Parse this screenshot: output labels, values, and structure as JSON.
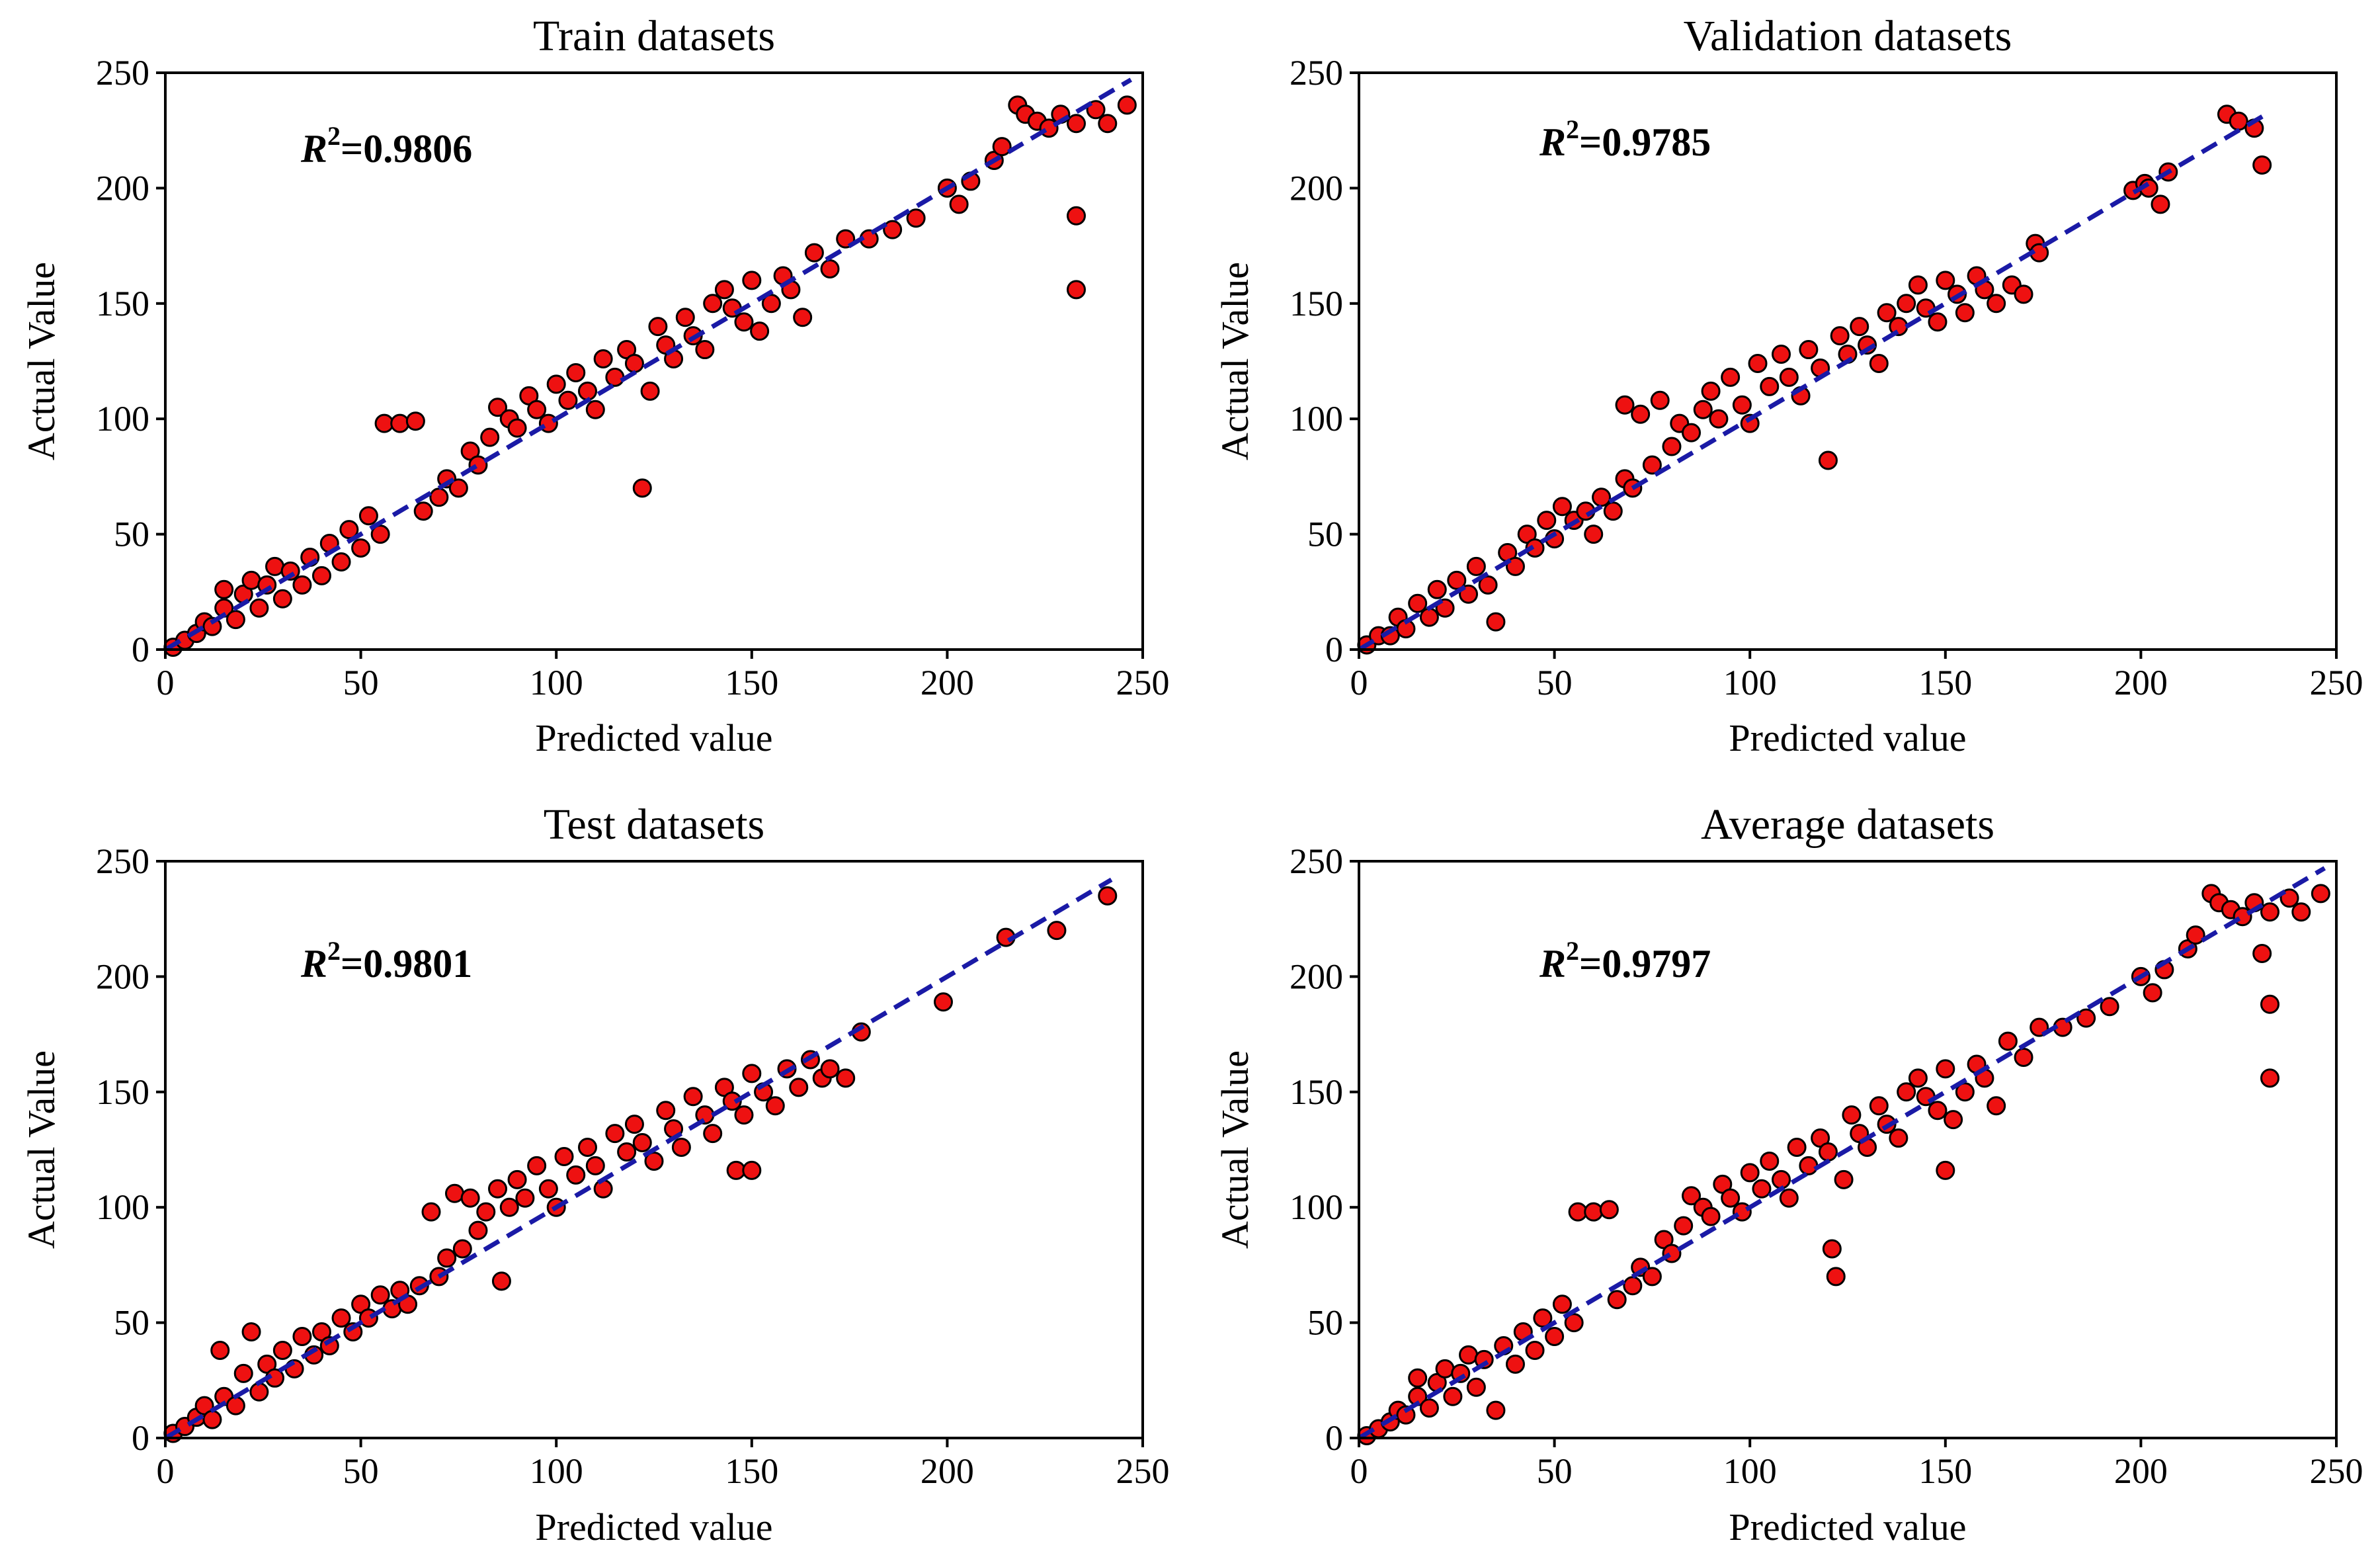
{
  "figure": {
    "marker_color": "#ee1111",
    "marker_edge_color": "#000000",
    "fit_line_color": "#1a1aa6"
  },
  "chart_data": [
    {
      "type": "scatter",
      "title": "Train datasets",
      "xlabel": "Predicted value",
      "ylabel": "Actual Value",
      "xlim": [
        0,
        250
      ],
      "ylim": [
        0,
        250
      ],
      "xticks": [
        0,
        50,
        100,
        150,
        200,
        250
      ],
      "yticks": [
        0,
        50,
        100,
        150,
        200,
        250
      ],
      "annotation": {
        "base": "R",
        "sup": "2",
        "value": "=0.9806"
      },
      "fit_line": {
        "x": [
          0,
          247
        ],
        "y": [
          0,
          247
        ],
        "style": "dashed"
      },
      "points": [
        [
          2,
          1
        ],
        [
          5,
          4
        ],
        [
          8,
          7
        ],
        [
          10,
          12
        ],
        [
          12,
          10
        ],
        [
          15,
          18
        ],
        [
          15,
          26
        ],
        [
          18,
          13
        ],
        [
          20,
          24
        ],
        [
          22,
          30
        ],
        [
          24,
          18
        ],
        [
          26,
          28
        ],
        [
          28,
          36
        ],
        [
          30,
          22
        ],
        [
          32,
          34
        ],
        [
          35,
          28
        ],
        [
          37,
          40
        ],
        [
          40,
          32
        ],
        [
          42,
          46
        ],
        [
          45,
          38
        ],
        [
          47,
          52
        ],
        [
          50,
          44
        ],
        [
          52,
          58
        ],
        [
          55,
          50
        ],
        [
          56,
          98
        ],
        [
          60,
          98
        ],
        [
          64,
          99
        ],
        [
          66,
          60
        ],
        [
          70,
          66
        ],
        [
          72,
          74
        ],
        [
          75,
          70
        ],
        [
          78,
          86
        ],
        [
          80,
          80
        ],
        [
          83,
          92
        ],
        [
          85,
          105
        ],
        [
          88,
          100
        ],
        [
          90,
          96
        ],
        [
          93,
          110
        ],
        [
          95,
          104
        ],
        [
          98,
          98
        ],
        [
          100,
          115
        ],
        [
          103,
          108
        ],
        [
          105,
          120
        ],
        [
          108,
          112
        ],
        [
          110,
          104
        ],
        [
          112,
          126
        ],
        [
          115,
          118
        ],
        [
          118,
          130
        ],
        [
          120,
          124
        ],
        [
          122,
          70
        ],
        [
          124,
          112
        ],
        [
          126,
          140
        ],
        [
          128,
          132
        ],
        [
          130,
          126
        ],
        [
          133,
          144
        ],
        [
          135,
          136
        ],
        [
          138,
          130
        ],
        [
          140,
          150
        ],
        [
          143,
          156
        ],
        [
          145,
          148
        ],
        [
          148,
          142
        ],
        [
          150,
          160
        ],
        [
          152,
          138
        ],
        [
          155,
          150
        ],
        [
          158,
          162
        ],
        [
          160,
          156
        ],
        [
          163,
          144
        ],
        [
          166,
          172
        ],
        [
          170,
          165
        ],
        [
          174,
          178
        ],
        [
          180,
          178
        ],
        [
          186,
          182
        ],
        [
          192,
          187
        ],
        [
          200,
          200
        ],
        [
          203,
          193
        ],
        [
          206,
          203
        ],
        [
          212,
          212
        ],
        [
          214,
          218
        ],
        [
          218,
          236
        ],
        [
          220,
          232
        ],
        [
          223,
          229
        ],
        [
          226,
          226
        ],
        [
          229,
          232
        ],
        [
          233,
          228
        ],
        [
          233,
          188
        ],
        [
          233,
          156
        ],
        [
          238,
          234
        ],
        [
          241,
          228
        ],
        [
          246,
          236
        ]
      ]
    },
    {
      "type": "scatter",
      "title": "Validation datasets",
      "xlabel": "Predicted value",
      "ylabel": "Actual Value",
      "xlim": [
        0,
        250
      ],
      "ylim": [
        0,
        250
      ],
      "xticks": [
        0,
        50,
        100,
        150,
        200,
        250
      ],
      "yticks": [
        0,
        50,
        100,
        150,
        200,
        250
      ],
      "annotation": {
        "base": "R",
        "sup": "2",
        "value": "=0.9785"
      },
      "fit_line": {
        "x": [
          0,
          232
        ],
        "y": [
          0,
          232
        ],
        "style": "dashed"
      },
      "points": [
        [
          2,
          2
        ],
        [
          5,
          6
        ],
        [
          8,
          6
        ],
        [
          10,
          14
        ],
        [
          12,
          9
        ],
        [
          15,
          20
        ],
        [
          18,
          14
        ],
        [
          20,
          26
        ],
        [
          22,
          18
        ],
        [
          25,
          30
        ],
        [
          28,
          24
        ],
        [
          30,
          36
        ],
        [
          33,
          28
        ],
        [
          35,
          12
        ],
        [
          38,
          42
        ],
        [
          40,
          36
        ],
        [
          43,
          50
        ],
        [
          45,
          44
        ],
        [
          48,
          56
        ],
        [
          50,
          48
        ],
        [
          52,
          62
        ],
        [
          55,
          56
        ],
        [
          58,
          60
        ],
        [
          60,
          50
        ],
        [
          62,
          66
        ],
        [
          65,
          60
        ],
        [
          68,
          74
        ],
        [
          68,
          106
        ],
        [
          70,
          70
        ],
        [
          72,
          102
        ],
        [
          75,
          80
        ],
        [
          77,
          108
        ],
        [
          80,
          88
        ],
        [
          82,
          98
        ],
        [
          85,
          94
        ],
        [
          88,
          104
        ],
        [
          90,
          112
        ],
        [
          92,
          100
        ],
        [
          95,
          118
        ],
        [
          98,
          106
        ],
        [
          100,
          98
        ],
        [
          102,
          124
        ],
        [
          105,
          114
        ],
        [
          108,
          128
        ],
        [
          110,
          118
        ],
        [
          113,
          110
        ],
        [
          115,
          130
        ],
        [
          118,
          122
        ],
        [
          120,
          82
        ],
        [
          123,
          136
        ],
        [
          125,
          128
        ],
        [
          128,
          140
        ],
        [
          130,
          132
        ],
        [
          133,
          124
        ],
        [
          135,
          146
        ],
        [
          138,
          140
        ],
        [
          140,
          150
        ],
        [
          143,
          158
        ],
        [
          145,
          148
        ],
        [
          148,
          142
        ],
        [
          150,
          160
        ],
        [
          153,
          154
        ],
        [
          155,
          146
        ],
        [
          158,
          162
        ],
        [
          160,
          156
        ],
        [
          163,
          150
        ],
        [
          167,
          158
        ],
        [
          170,
          154
        ],
        [
          173,
          176
        ],
        [
          174,
          172
        ],
        [
          198,
          199
        ],
        [
          201,
          202
        ],
        [
          202,
          200
        ],
        [
          205,
          193
        ],
        [
          207,
          207
        ],
        [
          222,
          232
        ],
        [
          225,
          229
        ],
        [
          229,
          226
        ],
        [
          231,
          210
        ]
      ]
    },
    {
      "type": "scatter",
      "title": "Test datasets",
      "xlabel": "Predicted value",
      "ylabel": "Actual Value",
      "xlim": [
        0,
        250
      ],
      "ylim": [
        0,
        250
      ],
      "xticks": [
        0,
        50,
        100,
        150,
        200,
        250
      ],
      "yticks": [
        0,
        50,
        100,
        150,
        200,
        250
      ],
      "annotation": {
        "base": "R",
        "sup": "2",
        "value": "=0.9801"
      },
      "fit_line": {
        "x": [
          0,
          242
        ],
        "y": [
          0,
          242
        ],
        "style": "dashed"
      },
      "points": [
        [
          2,
          2
        ],
        [
          5,
          5
        ],
        [
          8,
          9
        ],
        [
          10,
          14
        ],
        [
          12,
          8
        ],
        [
          14,
          38
        ],
        [
          15,
          18
        ],
        [
          18,
          14
        ],
        [
          20,
          28
        ],
        [
          22,
          46
        ],
        [
          24,
          20
        ],
        [
          26,
          32
        ],
        [
          28,
          26
        ],
        [
          30,
          38
        ],
        [
          33,
          30
        ],
        [
          35,
          44
        ],
        [
          38,
          36
        ],
        [
          40,
          46
        ],
        [
          42,
          40
        ],
        [
          45,
          52
        ],
        [
          48,
          46
        ],
        [
          50,
          58
        ],
        [
          52,
          52
        ],
        [
          55,
          62
        ],
        [
          58,
          56
        ],
        [
          60,
          64
        ],
        [
          62,
          58
        ],
        [
          65,
          66
        ],
        [
          68,
          98
        ],
        [
          70,
          70
        ],
        [
          72,
          78
        ],
        [
          74,
          106
        ],
        [
          76,
          82
        ],
        [
          78,
          104
        ],
        [
          80,
          90
        ],
        [
          82,
          98
        ],
        [
          85,
          108
        ],
        [
          86,
          68
        ],
        [
          88,
          100
        ],
        [
          90,
          112
        ],
        [
          92,
          104
        ],
        [
          95,
          118
        ],
        [
          98,
          108
        ],
        [
          100,
          100
        ],
        [
          102,
          122
        ],
        [
          105,
          114
        ],
        [
          108,
          126
        ],
        [
          110,
          118
        ],
        [
          112,
          108
        ],
        [
          115,
          132
        ],
        [
          118,
          124
        ],
        [
          120,
          136
        ],
        [
          122,
          128
        ],
        [
          125,
          120
        ],
        [
          128,
          142
        ],
        [
          130,
          134
        ],
        [
          132,
          126
        ],
        [
          135,
          148
        ],
        [
          138,
          140
        ],
        [
          140,
          132
        ],
        [
          143,
          152
        ],
        [
          145,
          146
        ],
        [
          146,
          116
        ],
        [
          148,
          140
        ],
        [
          150,
          116
        ],
        [
          150,
          158
        ],
        [
          153,
          150
        ],
        [
          156,
          144
        ],
        [
          159,
          160
        ],
        [
          162,
          152
        ],
        [
          165,
          164
        ],
        [
          168,
          156
        ],
        [
          170,
          160
        ],
        [
          174,
          156
        ],
        [
          178,
          176
        ],
        [
          199,
          189
        ],
        [
          215,
          217
        ],
        [
          228,
          220
        ],
        [
          241,
          235
        ]
      ]
    },
    {
      "type": "scatter",
      "title": "Average datasets",
      "xlabel": "Predicted value",
      "ylabel": "Actual Value",
      "xlim": [
        0,
        250
      ],
      "ylim": [
        0,
        250
      ],
      "xticks": [
        0,
        50,
        100,
        150,
        200,
        250
      ],
      "yticks": [
        0,
        50,
        100,
        150,
        200,
        250
      ],
      "annotation": {
        "base": "R",
        "sup": "2",
        "value": "=0.9797"
      },
      "fit_line": {
        "x": [
          0,
          247
        ],
        "y": [
          0,
          247
        ],
        "style": "dashed"
      },
      "points": [
        [
          2,
          1
        ],
        [
          5,
          4
        ],
        [
          8,
          7
        ],
        [
          10,
          12
        ],
        [
          12,
          10
        ],
        [
          15,
          18
        ],
        [
          15,
          26
        ],
        [
          18,
          13
        ],
        [
          20,
          24
        ],
        [
          22,
          30
        ],
        [
          24,
          18
        ],
        [
          26,
          28
        ],
        [
          28,
          36
        ],
        [
          30,
          22
        ],
        [
          32,
          34
        ],
        [
          35,
          12
        ],
        [
          37,
          40
        ],
        [
          40,
          32
        ],
        [
          42,
          46
        ],
        [
          45,
          38
        ],
        [
          47,
          52
        ],
        [
          50,
          44
        ],
        [
          52,
          58
        ],
        [
          55,
          50
        ],
        [
          56,
          98
        ],
        [
          60,
          98
        ],
        [
          64,
          99
        ],
        [
          66,
          60
        ],
        [
          70,
          66
        ],
        [
          72,
          74
        ],
        [
          75,
          70
        ],
        [
          78,
          86
        ],
        [
          80,
          80
        ],
        [
          83,
          92
        ],
        [
          85,
          105
        ],
        [
          88,
          100
        ],
        [
          90,
          96
        ],
        [
          93,
          110
        ],
        [
          95,
          104
        ],
        [
          98,
          98
        ],
        [
          100,
          115
        ],
        [
          103,
          108
        ],
        [
          105,
          120
        ],
        [
          108,
          112
        ],
        [
          110,
          104
        ],
        [
          112,
          126
        ],
        [
          115,
          118
        ],
        [
          118,
          130
        ],
        [
          120,
          124
        ],
        [
          121,
          82
        ],
        [
          122,
          70
        ],
        [
          124,
          112
        ],
        [
          126,
          140
        ],
        [
          128,
          132
        ],
        [
          130,
          126
        ],
        [
          133,
          144
        ],
        [
          135,
          136
        ],
        [
          138,
          130
        ],
        [
          140,
          150
        ],
        [
          143,
          156
        ],
        [
          145,
          148
        ],
        [
          148,
          142
        ],
        [
          150,
          116
        ],
        [
          150,
          160
        ],
        [
          152,
          138
        ],
        [
          155,
          150
        ],
        [
          158,
          162
        ],
        [
          160,
          156
        ],
        [
          163,
          144
        ],
        [
          166,
          172
        ],
        [
          170,
          165
        ],
        [
          174,
          178
        ],
        [
          180,
          178
        ],
        [
          186,
          182
        ],
        [
          192,
          187
        ],
        [
          200,
          200
        ],
        [
          203,
          193
        ],
        [
          206,
          203
        ],
        [
          212,
          212
        ],
        [
          214,
          218
        ],
        [
          218,
          236
        ],
        [
          220,
          232
        ],
        [
          223,
          229
        ],
        [
          226,
          226
        ],
        [
          229,
          232
        ],
        [
          231,
          210
        ],
        [
          233,
          228
        ],
        [
          233,
          188
        ],
        [
          233,
          156
        ],
        [
          238,
          234
        ],
        [
          241,
          228
        ],
        [
          246,
          236
        ]
      ]
    }
  ]
}
